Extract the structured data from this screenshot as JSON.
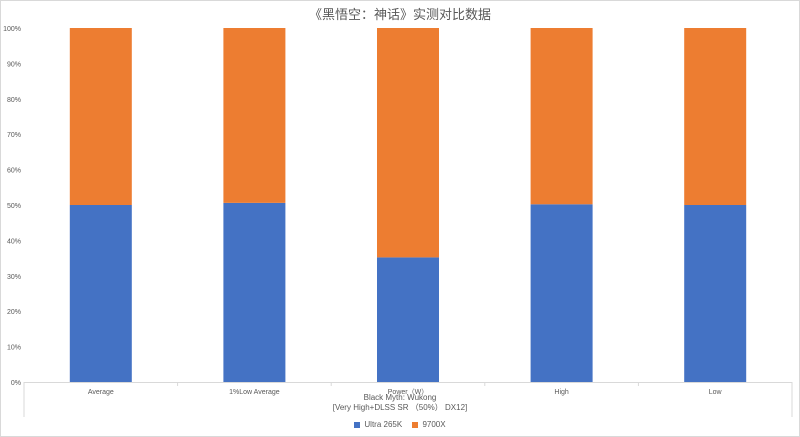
{
  "chart_data": {
    "type": "bar",
    "stacked": "percent",
    "title": "《黑悟空：神话》实测对比数据",
    "categories": [
      "Average",
      "1%Low Average",
      "Power（W）",
      "High",
      "Low"
    ],
    "series": [
      {
        "name": "Ultra 265K",
        "color": "#4472c4",
        "values": [
          50,
          50.6,
          35.2,
          50.2,
          50.0
        ]
      },
      {
        "name": "9700X",
        "color": "#ed7d31",
        "values": [
          50,
          49.4,
          64.8,
          49.8,
          50.0
        ]
      }
    ],
    "y_ticks": [
      "0%",
      "10%",
      "20%",
      "30%",
      "40%",
      "50%",
      "60%",
      "70%",
      "80%",
      "90%",
      "100%"
    ],
    "ylim": [
      0,
      100
    ],
    "group_label_line1": "Black Myth: Wukong",
    "group_label_line2": "[Very High+DLSS SR （50%） DX12]",
    "legend_position": "bottom",
    "grid": false
  }
}
